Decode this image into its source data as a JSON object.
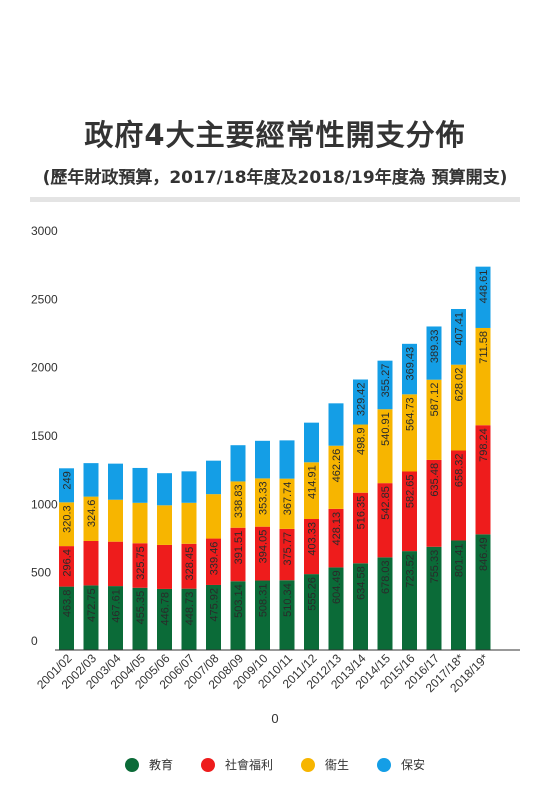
{
  "title": "政府4大主要經常性開支分佈",
  "subtitle": "(歷年財政預算，2017/18年度及2018/19年度為 預算開支)",
  "chart_data": {
    "type": "bar",
    "stacked": true,
    "categories": [
      "2001/02",
      "2002/03",
      "2003/04",
      "2004/05",
      "2005/06",
      "2006/07",
      "2007/08",
      "2008/09",
      "2009/10",
      "2010/11",
      "2011/12",
      "2012/13",
      "2013/14",
      "2014/15",
      "2015/16",
      "2016/17",
      "2017/18*",
      "2018/19*"
    ],
    "series": [
      {
        "name": "教育",
        "color": "#0b6b38",
        "values": [
          463.8,
          472.75,
          467.61,
          455.35,
          446.78,
          448.73,
          475.92,
          503.14,
          508.31,
          510.34,
          555.26,
          604.49,
          634.58,
          678.03,
          723.52,
          755.33,
          801.41,
          846.49
        ],
        "labels": [
          "463.8",
          "472.75",
          "467.61",
          "455.35",
          "446.78",
          "448.73",
          "475.92",
          "503.14",
          "508.31",
          "510.34",
          "555.26",
          "604.49",
          "634.58",
          "678.03",
          "723.52",
          "755.33",
          "801.41",
          "846.49"
        ]
      },
      {
        "name": "社會福利",
        "color": "#ee1c1c",
        "values": [
          296.4,
          325,
          325,
          325.75,
          322,
          328.45,
          339.46,
          391.51,
          394.05,
          375.77,
          403.33,
          428.13,
          516.35,
          542.85,
          582.65,
          635.48,
          658.32,
          798.24
        ],
        "labels": [
          "296.4",
          "",
          "",
          "325.75",
          "",
          "328.45",
          "339.46",
          "391.51",
          "394.05",
          "375.77",
          "403.33",
          "428.13",
          "516.35",
          "542.85",
          "582.65",
          "635.48",
          "658.32",
          "798.24"
        ]
      },
      {
        "name": "衞生",
        "color": "#f7b500",
        "values": [
          320.3,
          324.6,
          307,
          296,
          290,
          300,
          325,
          338.83,
          353.33,
          367.74,
          414.91,
          462.26,
          498.9,
          540.91,
          564.73,
          587.12,
          628.02,
          711.58
        ],
        "labels": [
          "320.3",
          "324.6",
          "",
          "",
          "",
          "",
          "",
          "338.83",
          "353.33",
          "367.74",
          "414.91",
          "462.26",
          "498.9",
          "540.91",
          "564.73",
          "587.12",
          "628.02",
          "711.58"
        ]
      },
      {
        "name": "保安",
        "color": "#149ee6",
        "values": [
          249,
          245,
          264,
          255,
          235,
          230,
          245,
          265,
          275,
          280,
          290,
          310,
          329.42,
          355.27,
          369.43,
          389.33,
          407.41,
          448.61
        ],
        "labels": [
          "249",
          "",
          "",
          "",
          "",
          "",
          "",
          "",
          "",
          "",
          "",
          "",
          "329.42",
          "355.27",
          "369.43",
          "389.33",
          "407.41",
          "448.61"
        ]
      }
    ],
    "y_ticks": [
      "0",
      "500",
      "1000",
      "1500",
      "2000",
      "2500",
      "3000"
    ],
    "ylim": [
      0,
      3000
    ],
    "xlabel": "0",
    "ylabel": "",
    "grid": false,
    "legend": "bottom"
  }
}
